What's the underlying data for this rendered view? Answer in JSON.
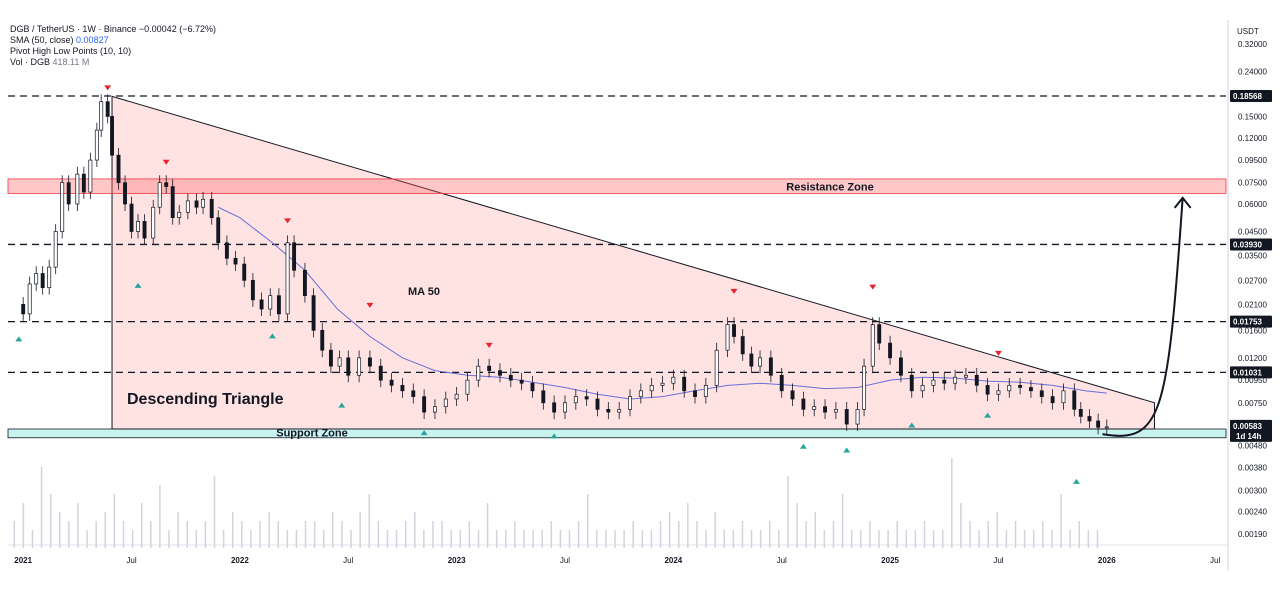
{
  "header": {
    "symbol_line": "DGB / TetherUS · 1W · Binance",
    "change": "−0.00042 (−6.72%)",
    "sma_label": "SMA (50, close)",
    "sma_value": "0.00827",
    "pivot_label": "Pivot High Low Points (10, 10)",
    "vol_label": "Vol · DGB",
    "vol_value": "418.11 M"
  },
  "currency": "USDT",
  "chart_data": {
    "type": "candlestick",
    "scale": "log",
    "y_ticks": [
      "0.32000",
      "0.24000",
      "0.15000",
      "0.12000",
      "0.09500",
      "0.07500",
      "0.06000",
      "0.04500",
      "0.03500",
      "0.02700",
      "0.02100",
      "0.01600",
      "0.01200",
      "0.00950",
      "0.00750",
      "0.00480",
      "0.00380",
      "0.00300",
      "0.00240",
      "0.00190"
    ],
    "x_ticks": [
      "2021",
      "Jul",
      "2022",
      "Jul",
      "2023",
      "Jul",
      "2024",
      "Jul",
      "2025",
      "Jul",
      "2026",
      "Jul"
    ],
    "price_tags": [
      "0.18568",
      "0.03930",
      "0.01753",
      "0.01031"
    ],
    "last_price": "0.00583",
    "countdown": "1d 14h",
    "close_series": [
      [
        2020.95,
        0.021
      ],
      [
        2021.0,
        0.019
      ],
      [
        2021.03,
        0.026
      ],
      [
        2021.06,
        0.029
      ],
      [
        2021.09,
        0.025
      ],
      [
        2021.12,
        0.031
      ],
      [
        2021.15,
        0.045
      ],
      [
        2021.18,
        0.075
      ],
      [
        2021.21,
        0.06
      ],
      [
        2021.25,
        0.082
      ],
      [
        2021.28,
        0.068
      ],
      [
        2021.31,
        0.095
      ],
      [
        2021.34,
        0.13
      ],
      [
        2021.36,
        0.175
      ],
      [
        2021.39,
        0.15
      ],
      [
        2021.41,
        0.1
      ],
      [
        2021.44,
        0.075
      ],
      [
        2021.47,
        0.06
      ],
      [
        2021.5,
        0.045
      ],
      [
        2021.53,
        0.05
      ],
      [
        2021.56,
        0.042
      ],
      [
        2021.6,
        0.058
      ],
      [
        2021.63,
        0.075
      ],
      [
        2021.66,
        0.072
      ],
      [
        2021.69,
        0.052
      ],
      [
        2021.72,
        0.055
      ],
      [
        2021.76,
        0.062
      ],
      [
        2021.8,
        0.058
      ],
      [
        2021.83,
        0.063
      ],
      [
        2021.87,
        0.052
      ],
      [
        2021.9,
        0.04
      ],
      [
        2021.94,
        0.034
      ],
      [
        2021.98,
        0.032
      ],
      [
        2022.02,
        0.027
      ],
      [
        2022.06,
        0.022
      ],
      [
        2022.1,
        0.02
      ],
      [
        2022.14,
        0.023
      ],
      [
        2022.18,
        0.019
      ],
      [
        2022.22,
        0.04
      ],
      [
        2022.25,
        0.03
      ],
      [
        2022.3,
        0.023
      ],
      [
        2022.34,
        0.016
      ],
      [
        2022.38,
        0.013
      ],
      [
        2022.42,
        0.011
      ],
      [
        2022.46,
        0.012
      ],
      [
        2022.5,
        0.01
      ],
      [
        2022.55,
        0.012
      ],
      [
        2022.6,
        0.011
      ],
      [
        2022.65,
        0.0095
      ],
      [
        2022.7,
        0.009
      ],
      [
        2022.75,
        0.0085
      ],
      [
        2022.8,
        0.008
      ],
      [
        2022.85,
        0.0068
      ],
      [
        2022.9,
        0.0072
      ],
      [
        2022.95,
        0.0078
      ],
      [
        2023.0,
        0.0082
      ],
      [
        2023.05,
        0.0095
      ],
      [
        2023.1,
        0.011
      ],
      [
        2023.15,
        0.0105
      ],
      [
        2023.2,
        0.01
      ],
      [
        2023.25,
        0.0095
      ],
      [
        2023.3,
        0.0092
      ],
      [
        2023.35,
        0.0085
      ],
      [
        2023.4,
        0.0075
      ],
      [
        2023.45,
        0.0068
      ],
      [
        2023.5,
        0.0075
      ],
      [
        2023.55,
        0.008
      ],
      [
        2023.6,
        0.0078
      ],
      [
        2023.65,
        0.007
      ],
      [
        2023.7,
        0.0068
      ],
      [
        2023.75,
        0.007
      ],
      [
        2023.8,
        0.008
      ],
      [
        2023.85,
        0.0085
      ],
      [
        2023.9,
        0.009
      ],
      [
        2023.95,
        0.0092
      ],
      [
        2024.0,
        0.0098
      ],
      [
        2024.05,
        0.0085
      ],
      [
        2024.1,
        0.008
      ],
      [
        2024.15,
        0.009
      ],
      [
        2024.2,
        0.013
      ],
      [
        2024.25,
        0.017
      ],
      [
        2024.28,
        0.015
      ],
      [
        2024.32,
        0.0125
      ],
      [
        2024.36,
        0.011
      ],
      [
        2024.4,
        0.012
      ],
      [
        2024.45,
        0.01
      ],
      [
        2024.5,
        0.0085
      ],
      [
        2024.55,
        0.0078
      ],
      [
        2024.6,
        0.007
      ],
      [
        2024.65,
        0.0072
      ],
      [
        2024.7,
        0.0068
      ],
      [
        2024.75,
        0.007
      ],
      [
        2024.8,
        0.006
      ],
      [
        2024.85,
        0.007
      ],
      [
        2024.88,
        0.011
      ],
      [
        2024.92,
        0.017
      ],
      [
        2024.95,
        0.014
      ],
      [
        2025.0,
        0.012
      ],
      [
        2025.05,
        0.01
      ],
      [
        2025.1,
        0.0085
      ],
      [
        2025.15,
        0.009
      ],
      [
        2025.2,
        0.0095
      ],
      [
        2025.25,
        0.0092
      ],
      [
        2025.3,
        0.0098
      ],
      [
        2025.35,
        0.01
      ],
      [
        2025.4,
        0.009
      ],
      [
        2025.45,
        0.0082
      ],
      [
        2025.5,
        0.0085
      ],
      [
        2025.55,
        0.009
      ],
      [
        2025.6,
        0.0088
      ],
      [
        2025.65,
        0.0085
      ],
      [
        2025.7,
        0.008
      ],
      [
        2025.75,
        0.0075
      ],
      [
        2025.8,
        0.0085
      ],
      [
        2025.85,
        0.007
      ],
      [
        2025.88,
        0.0065
      ],
      [
        2025.92,
        0.0062
      ],
      [
        2025.96,
        0.0058
      ],
      [
        2026.0,
        0.00583
      ]
    ],
    "sma50_series": [
      [
        2021.9,
        0.058
      ],
      [
        2022.0,
        0.052
      ],
      [
        2022.15,
        0.04
      ],
      [
        2022.3,
        0.03
      ],
      [
        2022.45,
        0.02
      ],
      [
        2022.6,
        0.015
      ],
      [
        2022.75,
        0.012
      ],
      [
        2022.9,
        0.0105
      ],
      [
        2023.05,
        0.01
      ],
      [
        2023.2,
        0.0098
      ],
      [
        2023.35,
        0.0093
      ],
      [
        2023.5,
        0.0088
      ],
      [
        2023.65,
        0.0082
      ],
      [
        2023.8,
        0.0078
      ],
      [
        2023.95,
        0.008
      ],
      [
        2024.1,
        0.0085
      ],
      [
        2024.25,
        0.009
      ],
      [
        2024.4,
        0.0092
      ],
      [
        2024.55,
        0.009
      ],
      [
        2024.7,
        0.0087
      ],
      [
        2024.85,
        0.0088
      ],
      [
        2025.0,
        0.0095
      ],
      [
        2025.15,
        0.0098
      ],
      [
        2025.3,
        0.0097
      ],
      [
        2025.45,
        0.0094
      ],
      [
        2025.6,
        0.0093
      ],
      [
        2025.75,
        0.009
      ],
      [
        2025.9,
        0.0085
      ],
      [
        2026.0,
        0.0083
      ]
    ],
    "volume_series": [
      0.3,
      0.5,
      0.2,
      0.9,
      0.6,
      0.4,
      0.3,
      0.5,
      0.2,
      0.3,
      0.4,
      0.6,
      0.3,
      0.2,
      0.5,
      0.3,
      0.7,
      0.2,
      0.4,
      0.3,
      0.2,
      0.3,
      0.8,
      0.2,
      0.4,
      0.3,
      0.2,
      0.3,
      0.4,
      0.3,
      0.2,
      0.2,
      0.3,
      0.3,
      0.2,
      0.4,
      0.3,
      0.2,
      0.4,
      0.6,
      0.3,
      0.2,
      0.2,
      0.3,
      0.4,
      0.2,
      0.3,
      0.3,
      0.2,
      0.2,
      0.3,
      0.2,
      0.5,
      0.2,
      0.2,
      0.3,
      0.2,
      0.2,
      0.2,
      0.3,
      0.2,
      0.2,
      0.3,
      0.6,
      0.2,
      0.2,
      0.2,
      0.2,
      0.3,
      0.2,
      0.2,
      0.3,
      0.4,
      0.3,
      0.5,
      0.3,
      0.2,
      0.4,
      0.2,
      0.2,
      0.3,
      0.2,
      0.2,
      0.3,
      0.2,
      0.8,
      0.5,
      0.3,
      0.4,
      0.2,
      0.3,
      0.6,
      0.2,
      0.2,
      0.3,
      0.2,
      0.2,
      0.3,
      0.2,
      0.2,
      0.3,
      0.2,
      0.2,
      1.0,
      0.5,
      0.3,
      0.2,
      0.3,
      0.4,
      0.2,
      0.3,
      0.2,
      0.2,
      0.3,
      0.2,
      0.6,
      0.2,
      0.3,
      0.2,
      0.2
    ],
    "pivot_highs": [
      [
        2021.39,
        0.185
      ],
      [
        2021.66,
        0.085
      ],
      [
        2022.22,
        0.046
      ],
      [
        2022.6,
        0.019
      ],
      [
        2023.15,
        0.0125
      ],
      [
        2024.28,
        0.022
      ],
      [
        2024.92,
        0.023
      ],
      [
        2025.5,
        0.0115
      ]
    ],
    "pivot_lows": [
      [
        2020.98,
        0.016
      ],
      [
        2021.53,
        0.028
      ],
      [
        2022.15,
        0.0165
      ],
      [
        2022.47,
        0.008
      ],
      [
        2022.85,
        0.006
      ],
      [
        2023.45,
        0.0058
      ],
      [
        2024.6,
        0.0052
      ],
      [
        2024.8,
        0.005
      ],
      [
        2025.1,
        0.0065
      ],
      [
        2025.45,
        0.0072
      ],
      [
        2025.86,
        0.0036
      ]
    ],
    "resistance_levels": [
      0.18568,
      0.0393,
      0.01753,
      0.01031
    ],
    "resistance_zone": [
      0.067,
      0.078
    ],
    "support_zone": [
      0.0052,
      0.0057
    ]
  },
  "annotations": {
    "resistance_zone": "Resistance Zone",
    "support_zone": "Support Zone",
    "pattern": "Descending Triangle",
    "ma": "MA 50"
  }
}
